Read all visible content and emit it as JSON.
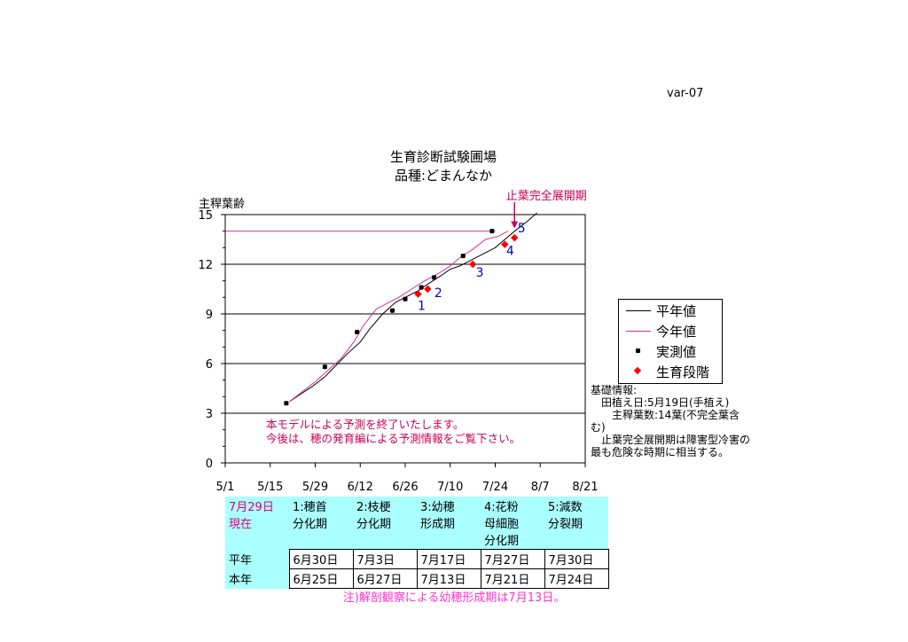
{
  "code": "var-07",
  "title_lines": [
    "生育診断試験圃場",
    "品種:どまんなか"
  ],
  "chart_data": {
    "type": "line",
    "ylabel": "主稈葉齢",
    "ylim": [
      0,
      15
    ],
    "yticks": [
      "0",
      "3",
      "6",
      "9",
      "12",
      "15"
    ],
    "xlim": [
      "5/1",
      "8/21"
    ],
    "xticks": [
      "5/1",
      "5/15",
      "5/29",
      "6/12",
      "6/26",
      "7/10",
      "7/24",
      "8/7",
      "8/21"
    ],
    "grid_y": true,
    "series": [
      {
        "name": "平年値",
        "color": "#000000",
        "x": [
          "5/21",
          "5/24",
          "5/28",
          "6/1",
          "6/5",
          "6/8",
          "6/12",
          "6/15",
          "6/19",
          "6/23",
          "6/26",
          "6/30",
          "7/3",
          "7/7",
          "7/10",
          "7/13",
          "7/17",
          "7/21",
          "7/24",
          "7/27",
          "7/30",
          "8/3",
          "8/6"
        ],
        "y": [
          3.7,
          4.1,
          4.6,
          5.2,
          6.0,
          6.6,
          7.3,
          8.1,
          9.0,
          9.7,
          10.0,
          10.4,
          10.8,
          11.3,
          11.7,
          11.9,
          12.3,
          12.7,
          13.0,
          13.5,
          14.0,
          14.6,
          15.1
        ]
      },
      {
        "name": "今年値",
        "color": "#cc3399",
        "x": [
          "5/21",
          "5/25",
          "5/29",
          "6/2",
          "6/6",
          "6/10",
          "6/13",
          "6/17",
          "6/20",
          "6/24",
          "6/28",
          "7/2",
          "7/6",
          "7/10",
          "7/13",
          "7/17",
          "7/21",
          "7/25",
          "7/28"
        ],
        "y": [
          3.7,
          4.3,
          4.9,
          5.6,
          6.3,
          7.3,
          8.3,
          9.3,
          9.6,
          10.0,
          10.5,
          11.0,
          11.4,
          11.9,
          12.4,
          12.9,
          13.5,
          13.7,
          14.0
        ]
      },
      {
        "name": "今年値-止葉",
        "color": "#cc3399",
        "x": [
          "5/1",
          "7/24"
        ],
        "y": [
          14,
          14
        ]
      }
    ],
    "measured_name": "実測値",
    "measured": {
      "x": [
        "5/20",
        "6/1",
        "6/11",
        "6/22",
        "6/26",
        "7/1",
        "7/5",
        "7/14",
        "7/23"
      ],
      "y": [
        3.6,
        5.8,
        7.9,
        9.2,
        9.9,
        10.6,
        11.2,
        12.5,
        14.0
      ]
    },
    "stages_name": "生育段階",
    "stages": [
      {
        "label": "1",
        "x": "6/30",
        "y": 10.2
      },
      {
        "label": "2",
        "x": "7/3",
        "y": 10.5
      },
      {
        "label": "3",
        "x": "7/17",
        "y": 12.0
      },
      {
        "label": "4",
        "x": "7/27",
        "y": 13.2
      },
      {
        "label": "5",
        "x": "7/30",
        "y": 13.6
      }
    ],
    "annotation": {
      "text": "止葉完全展開期",
      "x": "7/30",
      "y": 14
    },
    "message_lines": [
      "本モデルによる予測を終了いたします。",
      "今後は、穂の発育編による予測情報をご覧下さい。"
    ]
  },
  "legend": [
    "平年値",
    "今年値",
    "実測値",
    "生育段階"
  ],
  "info_lines": [
    "基礎情報:",
    "　田植え日:5月19日(手植え)",
    "　　主稈葉数:14葉(不完全葉含",
    "む)",
    "　止葉完全展開期は障害型冷害の",
    "最も危険な時期に相当する。"
  ],
  "table": {
    "corner": [
      "7月29日",
      "現在"
    ],
    "headers": [
      [
        "1:穂首",
        "分化期"
      ],
      [
        "2:枝梗",
        "分化期"
      ],
      [
        "3:幼穂",
        "形成期"
      ],
      [
        "4:花粉",
        "母細胞",
        "分化期"
      ],
      [
        "5:減数",
        "分裂期"
      ]
    ],
    "rows": [
      {
        "label": "平年",
        "values": [
          "6月30日",
          "7月3日",
          "7月17日",
          "7月27日",
          "7月30日"
        ]
      },
      {
        "label": "本年",
        "values": [
          "6月25日",
          "6月27日",
          "7月13日",
          "7月21日",
          "7月24日"
        ]
      }
    ]
  },
  "note": "注)解剖観察による幼穂形成期は7月13日。",
  "colors": {
    "stage_marker": "#ff0000",
    "stage_label": "#0000cc",
    "message": "#cc0055",
    "annotation": "#cc0055",
    "note": "#ff33cc",
    "table_bg": "#aaffff"
  }
}
